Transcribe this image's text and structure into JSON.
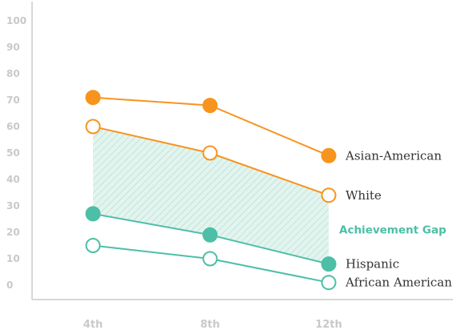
{
  "chart_data": {
    "type": "line",
    "title": "",
    "xlabel": "",
    "ylabel": "",
    "categories": [
      "4th",
      "8th",
      "12th"
    ],
    "ylim": [
      0,
      100
    ],
    "yticks": [
      0,
      10,
      20,
      30,
      40,
      50,
      60,
      70,
      80,
      90,
      100
    ],
    "grid": false,
    "series": [
      {
        "name": "Asian-American",
        "values": [
          71,
          68,
          49
        ],
        "color": "#f7941d",
        "marker": "filled"
      },
      {
        "name": "White",
        "values": [
          60,
          50,
          34
        ],
        "color": "#f7941d",
        "marker": "hollow"
      },
      {
        "name": "Hispanic",
        "values": [
          27,
          19,
          8
        ],
        "color": "#4cbfa6",
        "marker": "filled"
      },
      {
        "name": "African American",
        "values": [
          15,
          10,
          1
        ],
        "color": "#4cbfa6",
        "marker": "hollow"
      }
    ],
    "annotations": [
      {
        "text": "Achievement Gap",
        "between": [
          "White",
          "Hispanic"
        ],
        "color": "#4cbfa6",
        "fill": "hatched"
      }
    ]
  }
}
